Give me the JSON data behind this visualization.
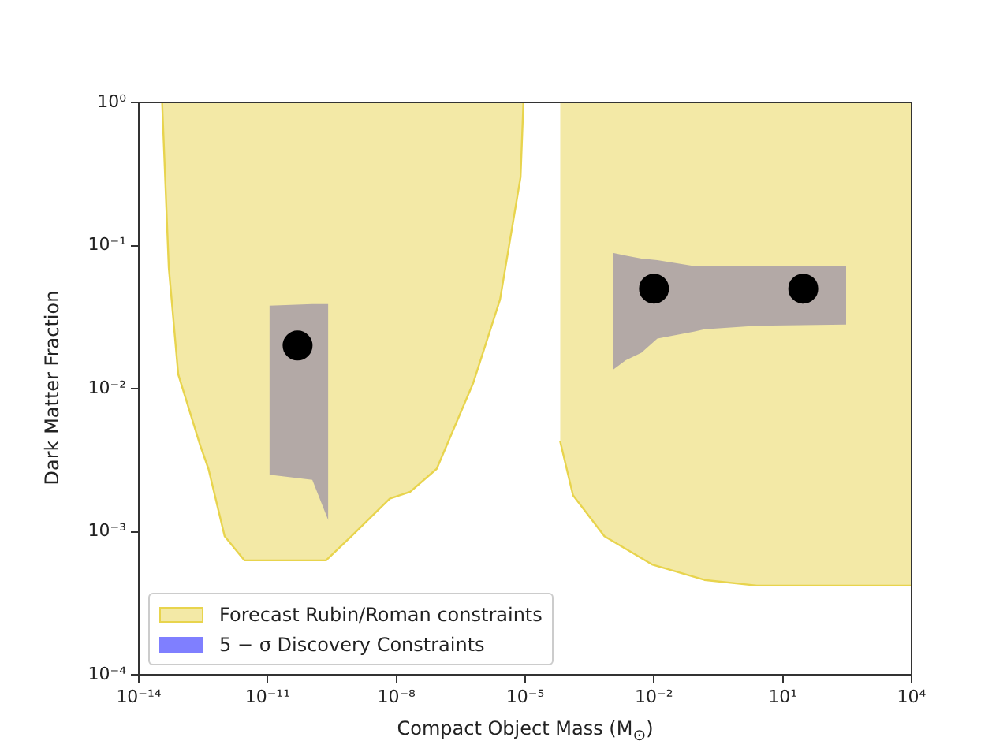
{
  "chart_data": {
    "type": "line",
    "xlabel": "Compact Object Mass (M$_{⊙}$)",
    "ylabel": "Dark Matter Fraction",
    "log": "xy",
    "grid": false,
    "legend": "bottom left",
    "xlim": [
      1e-14,
      10000
    ],
    "ylim": [
      0.0001,
      1
    ],
    "xticks": [
      {
        "value": 1e-14,
        "label": "10⁻¹⁴"
      },
      {
        "value": 1e-11,
        "label": "10⁻¹¹"
      },
      {
        "value": 1e-08,
        "label": "10⁻⁸"
      },
      {
        "value": 1e-05,
        "label": "10⁻⁵"
      },
      {
        "value": 0.01,
        "label": "10⁻²"
      },
      {
        "value": 10,
        "label": "10¹"
      },
      {
        "value": 10000,
        "label": "10⁴"
      }
    ],
    "yticks": [
      {
        "value": 0.0001,
        "label": "10⁻⁴"
      },
      {
        "value": 0.001,
        "label": "10⁻³"
      },
      {
        "value": 0.01,
        "label": "10⁻²"
      },
      {
        "value": 0.1,
        "label": "10⁻¹"
      },
      {
        "value": 1,
        "label": "10⁰"
      }
    ],
    "series": [
      {
        "name": "Forecast Rubin/Roman constraints",
        "color": "#e8d44d",
        "x": [
          3.5e-14,
          5e-14,
          8.3e-14,
          2.7e-13,
          4.2e-13,
          1e-12,
          2.9e-12,
          2.3e-10,
          9e-10,
          7e-09,
          2.1e-08,
          8.7e-08,
          6.2e-07,
          2.6e-06,
          7.8e-06,
          9.1e-06
        ],
        "values": [
          1,
          0.07,
          0.0126,
          0.004,
          0.00275,
          0.00093,
          0.00063,
          0.00063,
          0.00093,
          0.0017,
          0.0019,
          0.00275,
          0.011,
          0.042,
          0.3,
          1
        ],
        "lower": [
          1,
          0.07,
          0.0126,
          0.004,
          0.00275,
          0.00093,
          0.00063,
          0.00063,
          0.00093,
          0.0017,
          0.0019,
          0.00275,
          0.011,
          0.042,
          0.3,
          1
        ],
        "upper": [
          1,
          1,
          1,
          1,
          1,
          1,
          1,
          1,
          1,
          1,
          1,
          1,
          1,
          1,
          1,
          1
        ]
      },
      {
        "color": "#e8d44d",
        "x": [
          6.5e-05,
          0.00013,
          0.0007,
          0.009,
          0.15,
          2.5,
          10000
        ],
        "values": [
          0.0043,
          0.0018,
          0.00093,
          0.00059,
          0.00046,
          0.00042,
          0.00042
        ],
        "lower": [
          0.0043,
          0.0018,
          0.00093,
          0.00059,
          0.00046,
          0.00042,
          0.00042
        ],
        "upper": [
          1,
          1,
          1,
          1,
          1,
          1,
          1
        ]
      },
      {
        "name": "5 − σ Discovery Constraints",
        "color": "#0000ff",
        "x": [
          1.1e-11,
          1.1e-10,
          2.6e-10
        ],
        "values": [
          null,
          null,
          null
        ],
        "lower": [
          0.0025,
          0.0023,
          0.0012
        ],
        "upper": [
          0.038,
          0.039,
          0.039
        ]
      },
      {
        "color": "#0000ff",
        "x": [
          0.0011,
          0.0022,
          0.0051,
          0.012,
          0.085,
          0.15,
          2.5,
          300
        ],
        "values": [
          null,
          null,
          null,
          null,
          null,
          null,
          null,
          null
        ],
        "lower": [
          0.0135,
          0.0158,
          0.0178,
          0.0224,
          0.025,
          0.026,
          0.0275,
          0.028
        ],
        "upper": [
          0.089,
          0.085,
          0.081,
          0.079,
          0.072,
          0.072,
          0.072,
          0.072
        ]
      },
      {
        "type": "scatter",
        "color": "#000000",
        "marker": "circle",
        "x": [
          5e-11,
          0.01,
          30
        ],
        "values": [
          0.02,
          0.05,
          0.05
        ]
      }
    ]
  }
}
